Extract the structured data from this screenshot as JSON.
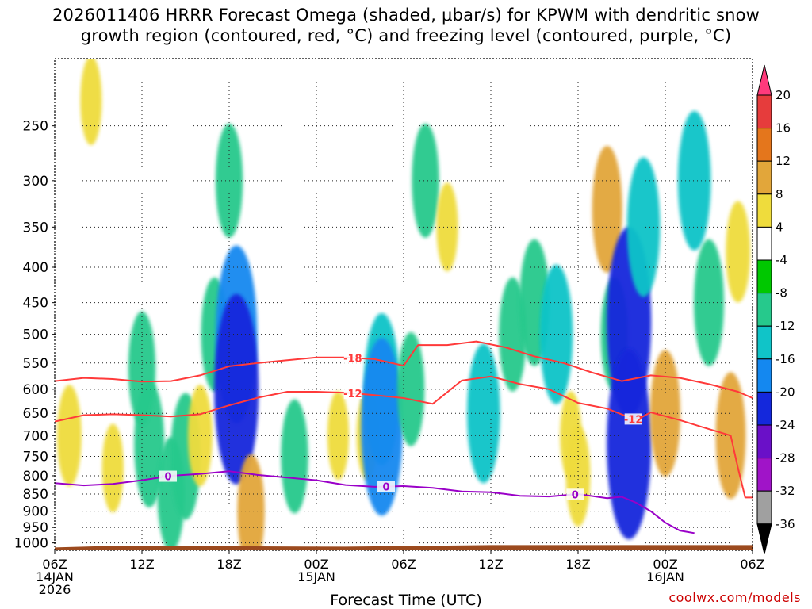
{
  "title": {
    "line1": "2026011406 HRRR Forecast Omega (shaded, μbar/s) for KPWM with dendritic snow",
    "line2": "growth region (contoured, red, °C) and freezing level (contoured, purple, °C)"
  },
  "credit": "coolwx.com/models",
  "chart_data": {
    "type": "time-height cross section",
    "x_label": "Forecast Time (UTC)",
    "x_range_hours": [
      0,
      48
    ],
    "x_ticks": [
      {
        "h": 0,
        "lines": [
          "06Z",
          "14JAN",
          "2026"
        ]
      },
      {
        "h": 6,
        "lines": [
          "12Z"
        ]
      },
      {
        "h": 12,
        "lines": [
          "18Z"
        ]
      },
      {
        "h": 18,
        "lines": [
          "00Z",
          "15JAN"
        ]
      },
      {
        "h": 24,
        "lines": [
          "06Z"
        ]
      },
      {
        "h": 30,
        "lines": [
          "12Z"
        ]
      },
      {
        "h": 36,
        "lines": [
          "18Z"
        ]
      },
      {
        "h": 42,
        "lines": [
          "00Z",
          "16JAN"
        ]
      },
      {
        "h": 48,
        "lines": [
          "06Z"
        ]
      }
    ],
    "y_ticks_hPa": [
      250,
      300,
      350,
      400,
      450,
      500,
      550,
      600,
      650,
      700,
      750,
      800,
      850,
      900,
      950,
      1000
    ],
    "y_range_hPa": [
      200,
      1025
    ],
    "surface_hPa": 1010,
    "colorbar": {
      "labels": [
        "20",
        "16",
        "12",
        "8",
        "4",
        "-4",
        "-8",
        "-12",
        "-16",
        "-20",
        "-24",
        "-28",
        "-32",
        "-36"
      ],
      "colors": [
        "#ff3a7c",
        "#e63c3c",
        "#e4761c",
        "#e2a63a",
        "#efdc3c",
        "#ffffff",
        "#00c800",
        "#26c98c",
        "#10c4c8",
        "#1488f0",
        "#1428dc",
        "#6a10c8",
        "#a014c8",
        "#a0a0a0",
        "#000000"
      ]
    },
    "omega_cells": [
      {
        "t": 1.0,
        "p": 700,
        "v": 6
      },
      {
        "t": 2.5,
        "p": 230,
        "v": 4
      },
      {
        "t": 4.0,
        "p": 780,
        "v": 4
      },
      {
        "t": 6.5,
        "p": 720,
        "v": -10
      },
      {
        "t": 6.0,
        "p": 560,
        "v": -8
      },
      {
        "t": 8.0,
        "p": 850,
        "v": -8
      },
      {
        "t": 9.0,
        "p": 750,
        "v": -10
      },
      {
        "t": 10.0,
        "p": 700,
        "v": 6
      },
      {
        "t": 11.0,
        "p": 500,
        "v": -8
      },
      {
        "t": 12.5,
        "p": 500,
        "v": -18
      },
      {
        "t": 12.5,
        "p": 600,
        "v": -20
      },
      {
        "t": 12.0,
        "p": 300,
        "v": -8
      },
      {
        "t": 13.5,
        "p": 900,
        "v": 8
      },
      {
        "t": 16.5,
        "p": 750,
        "v": -8
      },
      {
        "t": 19.5,
        "p": 700,
        "v": 4
      },
      {
        "t": 21.5,
        "p": 700,
        "v": 4
      },
      {
        "t": 22.5,
        "p": 600,
        "v": -14
      },
      {
        "t": 22.5,
        "p": 680,
        "v": -18
      },
      {
        "t": 24.5,
        "p": 600,
        "v": -8
      },
      {
        "t": 25.5,
        "p": 300,
        "v": -8
      },
      {
        "t": 27.0,
        "p": 350,
        "v": 4
      },
      {
        "t": 29.5,
        "p": 650,
        "v": -12
      },
      {
        "t": 31.5,
        "p": 500,
        "v": -8
      },
      {
        "t": 33.0,
        "p": 450,
        "v": -10
      },
      {
        "t": 34.5,
        "p": 500,
        "v": -12
      },
      {
        "t": 35.5,
        "p": 700,
        "v": 4
      },
      {
        "t": 36.0,
        "p": 800,
        "v": 6
      },
      {
        "t": 38.0,
        "p": 330,
        "v": 10
      },
      {
        "t": 38.5,
        "p": 500,
        "v": -8
      },
      {
        "t": 39.5,
        "p": 480,
        "v": -20
      },
      {
        "t": 39.5,
        "p": 720,
        "v": -20
      },
      {
        "t": 40.5,
        "p": 350,
        "v": -12
      },
      {
        "t": 42.0,
        "p": 650,
        "v": 10
      },
      {
        "t": 44.0,
        "p": 300,
        "v": -12
      },
      {
        "t": 45.0,
        "p": 450,
        "v": -10
      },
      {
        "t": 46.5,
        "p": 700,
        "v": 10
      },
      {
        "t": 47.0,
        "p": 380,
        "v": 6
      }
    ],
    "series": [
      {
        "name": "-18 C isotherm",
        "color": "#ff3a3a",
        "label": "-18",
        "label_at": 20.5,
        "points": [
          [
            0,
            584
          ],
          [
            2,
            578
          ],
          [
            4,
            580
          ],
          [
            6,
            585
          ],
          [
            8,
            584
          ],
          [
            10,
            573
          ],
          [
            12,
            556
          ],
          [
            14,
            550
          ],
          [
            16,
            545
          ],
          [
            18,
            540
          ],
          [
            20,
            540
          ],
          [
            22,
            543
          ],
          [
            24,
            555
          ],
          [
            25,
            518
          ],
          [
            27,
            518
          ],
          [
            29,
            512
          ],
          [
            31,
            522
          ],
          [
            33,
            538
          ],
          [
            35,
            550
          ],
          [
            37,
            568
          ],
          [
            39,
            584
          ],
          [
            41,
            573
          ],
          [
            43,
            578
          ],
          [
            45,
            590
          ],
          [
            47,
            605
          ],
          [
            48,
            618
          ]
        ]
      },
      {
        "name": "-12 C isotherm",
        "color": "#ff3a3a",
        "label": "-12",
        "label_at": 20.5,
        "points": [
          [
            0,
            668
          ],
          [
            2,
            654
          ],
          [
            4,
            652
          ],
          [
            6,
            654
          ],
          [
            8,
            657
          ],
          [
            10,
            652
          ],
          [
            12,
            633
          ],
          [
            14,
            617
          ],
          [
            16,
            605
          ],
          [
            18,
            605
          ],
          [
            20,
            607
          ],
          [
            22,
            612
          ],
          [
            24,
            618
          ],
          [
            26,
            630
          ],
          [
            28,
            583
          ],
          [
            30,
            575
          ],
          [
            32,
            590
          ],
          [
            34,
            600
          ],
          [
            36,
            628
          ],
          [
            38,
            640
          ],
          [
            40,
            665
          ],
          [
            41,
            648
          ],
          [
            43,
            665
          ],
          [
            45,
            685
          ],
          [
            46.5,
            700
          ],
          [
            47,
            780
          ],
          [
            47.5,
            860
          ],
          [
            48,
            860
          ]
        ]
      },
      {
        "name": "0 C freezing level",
        "color": "#9a00c8",
        "label": "0",
        "label_at": 7.8,
        "points": [
          [
            0,
            820
          ],
          [
            2,
            826
          ],
          [
            4,
            822
          ],
          [
            6,
            812
          ],
          [
            8,
            800
          ],
          [
            10,
            795
          ],
          [
            12,
            788
          ],
          [
            14,
            798
          ],
          [
            16,
            805
          ],
          [
            18,
            812
          ],
          [
            20,
            825
          ],
          [
            22,
            830
          ],
          [
            24,
            828
          ],
          [
            26,
            833
          ],
          [
            28,
            843
          ],
          [
            30,
            845
          ],
          [
            32,
            855
          ],
          [
            34,
            857
          ],
          [
            36,
            850
          ],
          [
            38,
            862
          ],
          [
            39,
            858
          ],
          [
            40,
            875
          ],
          [
            41,
            900
          ],
          [
            42,
            935
          ],
          [
            43,
            960
          ],
          [
            44,
            968
          ]
        ]
      }
    ],
    "extra_labels": [
      {
        "series": 2,
        "at": 22.8
      },
      {
        "series": 2,
        "at": 35.8
      },
      {
        "series": 1,
        "at": 39.8
      }
    ]
  }
}
